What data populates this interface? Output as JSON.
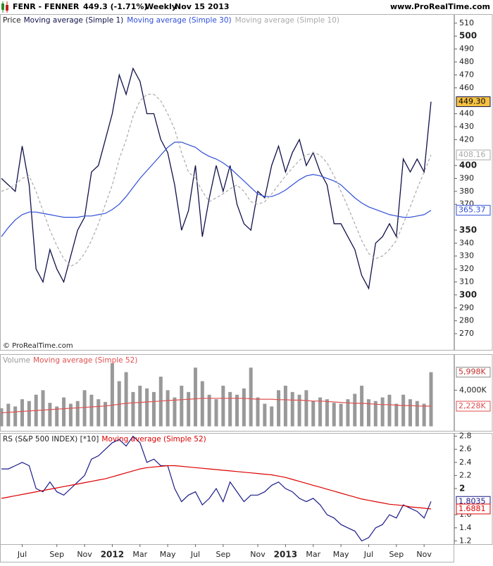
{
  "header": {
    "symbol": "FENR - FENNER",
    "quote": "449.3 (-1.71%)",
    "period": "Weekly",
    "date": "Nov 15 2013",
    "site": "www.ProRealTime.com"
  },
  "copyright": "© ProRealTime.com",
  "chart_data": [
    {
      "type": "line",
      "label": "Price",
      "ylim": [
        257.5,
        517
      ],
      "yticks": [
        270,
        280,
        290,
        300,
        310,
        320,
        330,
        340,
        350,
        370,
        380,
        390,
        400,
        420,
        430,
        440,
        460,
        470,
        480,
        490,
        500,
        510
      ],
      "series": [
        {
          "name": "Moving average (Simple 1)",
          "color": "#10104a",
          "last_label": "449.30",
          "label_fill": "#f5c242",
          "values": [
            390,
            385,
            380,
            415,
            385,
            320,
            310,
            335,
            320,
            310,
            330,
            350,
            360,
            395,
            400,
            420,
            440,
            470,
            455,
            475,
            465,
            440,
            440,
            420,
            410,
            385,
            350,
            365,
            400,
            345,
            375,
            400,
            380,
            400,
            370,
            355,
            350,
            380,
            375,
            400,
            415,
            395,
            410,
            420,
            400,
            410,
            395,
            385,
            355,
            355,
            345,
            335,
            315,
            305,
            340,
            345,
            355,
            345,
            405,
            395,
            405,
            395,
            449.3
          ]
        },
        {
          "name": "Moving average (Simple 30)",
          "color": "#2f4fd8",
          "last_label": "365.37",
          "values": [
            345,
            352,
            358,
            362,
            364,
            364,
            363,
            362,
            361,
            360,
            360,
            360,
            361,
            361,
            362,
            363,
            366,
            370,
            376,
            383,
            390,
            396,
            402,
            408,
            414,
            418,
            418,
            416,
            414,
            410,
            407,
            405,
            402,
            398,
            393,
            388,
            383,
            378,
            376,
            376,
            378,
            381,
            385,
            389,
            392,
            393,
            392,
            390,
            388,
            385,
            380,
            375,
            371,
            368,
            366,
            364,
            362,
            361,
            360,
            360,
            361,
            362,
            365.37
          ]
        },
        {
          "name": "Moving average (Simple 10)",
          "color": "#aaaaaa",
          "dash": true,
          "last_label": "408.16",
          "values": [
            380,
            382,
            385,
            390,
            392,
            380,
            365,
            350,
            338,
            328,
            322,
            325,
            332,
            342,
            355,
            370,
            385,
            405,
            420,
            438,
            450,
            455,
            455,
            450,
            440,
            428,
            410,
            395,
            390,
            380,
            372,
            375,
            378,
            382,
            385,
            380,
            372,
            370,
            372,
            378,
            385,
            392,
            398,
            404,
            408,
            410,
            408,
            402,
            392,
            380,
            368,
            355,
            342,
            332,
            328,
            330,
            335,
            342,
            355,
            368,
            382,
            395,
            408.16
          ]
        }
      ]
    },
    {
      "type": "bar",
      "label": "Volume",
      "ylim": [
        -500,
        8000
      ],
      "yticks": [
        {
          "value": 4000,
          "label": "4,000K"
        }
      ],
      "series": [
        {
          "kind": "bar",
          "color": "#999999",
          "last_label": "5,998K",
          "values": [
            2000,
            2500,
            2200,
            3000,
            2800,
            3500,
            4000,
            2600,
            2200,
            3200,
            2500,
            2800,
            4000,
            3500,
            3000,
            2700,
            7000,
            5000,
            6000,
            3800,
            4500,
            4200,
            3800,
            5500,
            4000,
            3200,
            4500,
            3800,
            6500,
            5000,
            3500,
            3000,
            4500,
            3800,
            3500,
            4200,
            6500,
            3200,
            2500,
            2200,
            4000,
            4500,
            3800,
            3500,
            4000,
            2800,
            3200,
            3000,
            2600,
            2500,
            3000,
            3600,
            4500,
            3000,
            2800,
            3200,
            3500,
            2500,
            3500,
            3000,
            2800,
            2500,
            5998
          ]
        },
        {
          "name": "Moving average (Simple 52)",
          "color": "#e05050",
          "last_label": "2,228K",
          "values": [
            1500,
            1550,
            1600,
            1650,
            1700,
            1750,
            1800,
            1850,
            1900,
            1950,
            2000,
            2050,
            2100,
            2150,
            2200,
            2250,
            2350,
            2450,
            2550,
            2600,
            2650,
            2700,
            2750,
            2800,
            2850,
            2900,
            2950,
            3000,
            3050,
            3100,
            3100,
            3100,
            3100,
            3100,
            3100,
            3100,
            3050,
            3000,
            3000,
            3000,
            2950,
            2950,
            2900,
            2900,
            2850,
            2800,
            2800,
            2750,
            2700,
            2650,
            2600,
            2550,
            2550,
            2500,
            2450,
            2400,
            2400,
            2350,
            2300,
            2300,
            2250,
            2240,
            2228
          ]
        }
      ]
    },
    {
      "type": "line",
      "label": "RS (S&P 500 INDEX) [*10]",
      "ylim": [
        1.15,
        2.85
      ],
      "yticks": [
        1.2,
        1.4,
        1.6,
        2,
        2.2,
        2.4,
        2.6,
        2.8
      ],
      "categories": [
        null,
        null,
        null,
        "Jul",
        null,
        null,
        null,
        null,
        "Sep",
        null,
        null,
        null,
        "Nov",
        null,
        null,
        null,
        "2012",
        null,
        null,
        null,
        "Mar",
        null,
        null,
        null,
        "May",
        null,
        null,
        null,
        "Jul",
        null,
        null,
        null,
        "Sep",
        null,
        null,
        null,
        null,
        "Nov",
        null,
        null,
        null,
        "2013",
        null,
        null,
        null,
        "Mar",
        null,
        null,
        null,
        "May",
        null,
        null,
        null,
        "Jul",
        null,
        null,
        null,
        "Sep",
        null,
        null,
        null,
        "Nov",
        null
      ],
      "series": [
        {
          "color": "#1a1a8a",
          "last_label": "1.8035",
          "values": [
            2.3,
            2.3,
            2.35,
            2.4,
            2.35,
            2.0,
            1.95,
            2.1,
            1.95,
            1.9,
            2.0,
            2.1,
            2.2,
            2.45,
            2.5,
            2.6,
            2.7,
            2.75,
            2.65,
            2.8,
            2.7,
            2.4,
            2.45,
            2.35,
            2.35,
            2.0,
            1.8,
            1.9,
            1.95,
            1.75,
            1.85,
            2.0,
            1.8,
            2.1,
            1.95,
            1.8,
            1.9,
            1.9,
            1.95,
            2.05,
            2.1,
            2.0,
            1.95,
            1.85,
            1.8,
            1.85,
            1.75,
            1.6,
            1.55,
            1.45,
            1.4,
            1.35,
            1.2,
            1.25,
            1.4,
            1.45,
            1.6,
            1.55,
            1.75,
            1.7,
            1.65,
            1.55,
            1.8035
          ]
        },
        {
          "name": "Moving average (Simple 52)",
          "color": "#dd0000",
          "last_label": "1.6881",
          "values": [
            1.85,
            1.87,
            1.89,
            1.91,
            1.93,
            1.95,
            1.97,
            1.99,
            2.01,
            2.03,
            2.05,
            2.07,
            2.09,
            2.11,
            2.13,
            2.15,
            2.18,
            2.21,
            2.24,
            2.27,
            2.3,
            2.32,
            2.33,
            2.34,
            2.35,
            2.35,
            2.34,
            2.33,
            2.32,
            2.31,
            2.3,
            2.29,
            2.28,
            2.27,
            2.26,
            2.25,
            2.24,
            2.23,
            2.22,
            2.21,
            2.19,
            2.17,
            2.14,
            2.11,
            2.08,
            2.05,
            2.02,
            1.99,
            1.96,
            1.93,
            1.9,
            1.87,
            1.84,
            1.82,
            1.8,
            1.78,
            1.76,
            1.75,
            1.74,
            1.72,
            1.71,
            1.7,
            1.6881
          ]
        }
      ]
    }
  ]
}
